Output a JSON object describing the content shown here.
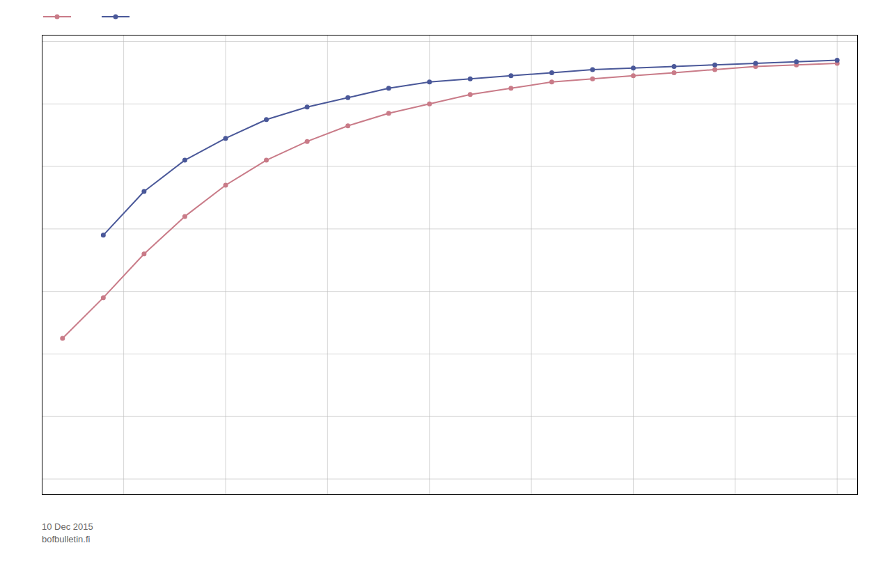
{
  "chart_data": {
    "type": "line",
    "x": [
      1,
      2,
      3,
      4,
      5,
      6,
      7,
      8,
      9,
      10,
      11,
      12,
      13,
      14,
      15,
      16,
      17,
      18,
      19,
      20
    ],
    "series": [
      {
        "color": "#c97b88",
        "values": [
          0.05,
          0.18,
          0.32,
          0.44,
          0.54,
          0.62,
          0.68,
          0.73,
          0.77,
          0.8,
          0.83,
          0.85,
          0.87,
          0.88,
          0.89,
          0.9,
          0.91,
          0.92,
          0.925,
          0.93
        ]
      },
      {
        "color": "#4a5899",
        "values": [
          null,
          0.38,
          0.52,
          0.62,
          0.69,
          0.75,
          0.79,
          0.82,
          0.85,
          0.87,
          0.88,
          0.89,
          0.9,
          0.91,
          0.915,
          0.92,
          0.925,
          0.93,
          0.935,
          0.94
        ]
      }
    ],
    "marker": "circle",
    "xlim": [
      0.5,
      20.5
    ],
    "ylim": [
      -0.45,
      1.02
    ],
    "xticks": [
      2.5,
      5,
      7.5,
      10,
      12.5,
      15,
      17.5,
      20
    ],
    "yticks": [
      -0.4,
      -0.2,
      0,
      0.2,
      0.4,
      0.6,
      0.8,
      1.0
    ],
    "grid": true,
    "tick_labels": false,
    "legend": "upper left",
    "annotations": [
      "10 Dec 2015",
      "bofbulletin.fi"
    ]
  }
}
